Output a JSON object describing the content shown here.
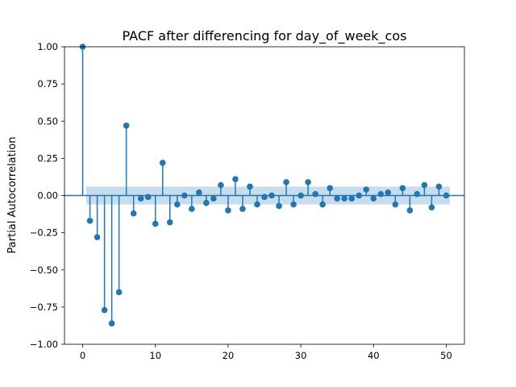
{
  "chart_data": {
    "type": "scatter",
    "title": "PACF after differencing for day_of_week_cos",
    "xlabel": "",
    "ylabel": "Partial Autocorrelation",
    "xlim": [
      -2.5,
      52.5
    ],
    "ylim": [
      -1.0,
      1.0
    ],
    "xticks": [
      0,
      10,
      20,
      30,
      40,
      50
    ],
    "xtick_labels": [
      "0",
      "10",
      "20",
      "30",
      "40",
      "50"
    ],
    "yticks": [
      -1.0,
      -0.75,
      -0.5,
      -0.25,
      0.0,
      0.25,
      0.5,
      0.75,
      1.0
    ],
    "ytick_labels": [
      "−1.00",
      "−0.75",
      "−0.50",
      "−0.25",
      "0.00",
      "0.25",
      "0.50",
      "0.75",
      "1.00"
    ],
    "grid": false,
    "colors": {
      "stem": "#1f77b4",
      "confidence_band": "#1f77b4"
    },
    "confidence_band": {
      "x": [
        0.5,
        50.5
      ],
      "lower": -0.06,
      "upper": 0.06
    },
    "series": [
      {
        "lags": [
          0,
          1,
          2,
          3,
          4,
          5,
          6,
          7,
          8,
          9,
          10,
          11,
          12,
          13,
          14,
          15,
          16,
          17,
          18,
          19,
          20,
          21,
          22,
          23,
          24,
          25,
          26,
          27,
          28,
          29,
          30,
          31,
          32,
          33,
          34,
          35,
          36,
          37,
          38,
          39,
          40,
          41,
          42,
          43,
          44,
          45,
          46,
          47,
          48,
          49,
          50
        ],
        "values": [
          1.0,
          -0.17,
          -0.28,
          -0.77,
          -0.86,
          -0.65,
          0.47,
          -0.12,
          -0.02,
          -0.01,
          -0.19,
          0.22,
          -0.18,
          -0.06,
          0.0,
          -0.09,
          0.02,
          -0.05,
          -0.02,
          0.07,
          -0.1,
          0.11,
          -0.09,
          0.06,
          -0.06,
          -0.01,
          0.0,
          -0.07,
          0.09,
          -0.06,
          0.0,
          0.09,
          0.01,
          -0.06,
          0.05,
          -0.02,
          -0.02,
          -0.02,
          0.0,
          0.04,
          -0.02,
          0.01,
          0.02,
          -0.06,
          0.05,
          -0.1,
          0.01,
          0.07,
          -0.08,
          0.06,
          0.0
        ]
      }
    ]
  }
}
